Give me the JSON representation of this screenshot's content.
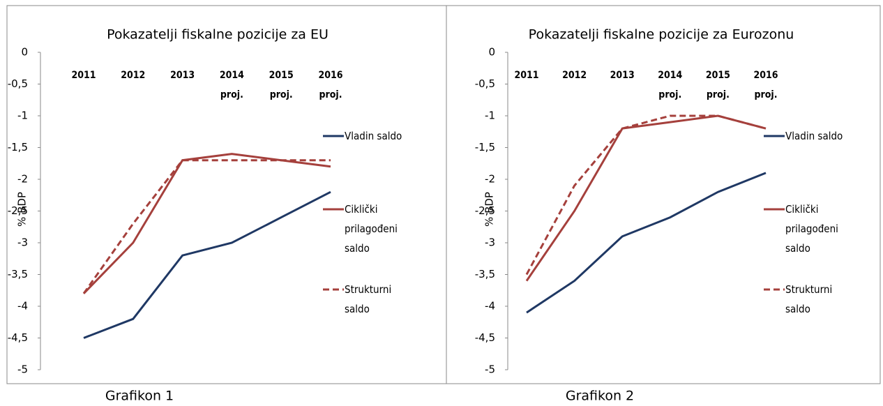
{
  "chart_data": [
    {
      "type": "line",
      "title": "Pokazatelji fiskalne pozicije za EU",
      "ylabel": "% BDP",
      "caption": "Grafikon 1",
      "categories": [
        "2011",
        "2012",
        "2013",
        "2014 proj.",
        "2015 proj.",
        "2016 proj."
      ],
      "ylim": [
        -5,
        0
      ],
      "yticks": [
        0,
        {
          "value": -0.5,
          "label": "-0,5"
        },
        -1,
        {
          "value": -1.5,
          "label": "-1,5"
        },
        -2,
        {
          "value": -2.5,
          "label": "-2,5"
        },
        -3,
        {
          "value": -3.5,
          "label": "-3,5"
        },
        -4,
        {
          "value": -4.5,
          "label": "-4,5"
        },
        -5
      ],
      "series": [
        {
          "name": "Vladin saldo",
          "color": "#1f3864",
          "dashed": false,
          "values": [
            -4.5,
            -4.2,
            -3.2,
            -3.0,
            -2.6,
            -2.2
          ]
        },
        {
          "name": "Ciklički prilagođeni saldo",
          "color": "#a5403c",
          "dashed": false,
          "values": [
            -3.8,
            -3.0,
            -1.7,
            -1.6,
            -1.7,
            -1.8
          ]
        },
        {
          "name": "Strukturni saldo",
          "color": "#a5403c",
          "dashed": true,
          "values": [
            -3.8,
            -2.7,
            -1.7,
            -1.7,
            -1.7,
            -1.7
          ]
        }
      ]
    },
    {
      "type": "line",
      "title": "Pokazatelji fiskalne pozicije za Eurozonu",
      "ylabel": "% BDP",
      "caption": "Grafikon 2",
      "categories": [
        "2011",
        "2012",
        "2013",
        "2014 proj.",
        "2015 proj.",
        "2016 proj."
      ],
      "ylim": [
        -5,
        0
      ],
      "yticks": [
        0,
        {
          "value": -0.5,
          "label": "-0,5"
        },
        -1,
        {
          "value": -1.5,
          "label": "-1,5"
        },
        -2,
        {
          "value": -2.5,
          "label": "-2,5"
        },
        -3,
        {
          "value": -3.5,
          "label": "-3,5"
        },
        -4,
        {
          "value": -4.5,
          "label": "-4,5"
        },
        -5
      ],
      "series": [
        {
          "name": "Vladin saldo",
          "color": "#1f3864",
          "dashed": false,
          "values": [
            -4.1,
            -3.6,
            -2.9,
            -2.6,
            -2.2,
            -1.9
          ]
        },
        {
          "name": "Ciklički prilagođeni saldo",
          "color": "#a5403c",
          "dashed": false,
          "values": [
            -3.6,
            -2.5,
            -1.2,
            -1.1,
            -1.0,
            -1.2
          ]
        },
        {
          "name": "Strukturni saldo",
          "color": "#a5403c",
          "dashed": true,
          "values": [
            -3.5,
            -2.1,
            -1.2,
            -1.0,
            -1.0,
            -1.2
          ]
        }
      ]
    }
  ]
}
